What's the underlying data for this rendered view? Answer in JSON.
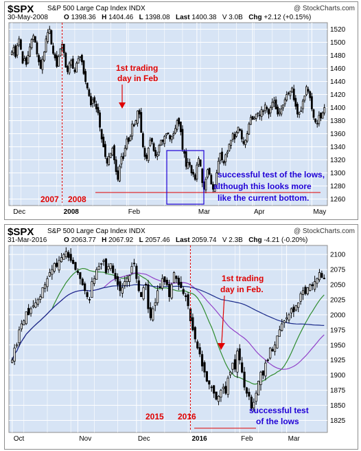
{
  "colors": {
    "plot_bg": "#d7e4f5",
    "grid": "#ffffff",
    "candle": "#000000",
    "annotation_red": "#e00000",
    "annotation_blue": "#1f00d6",
    "ma_blue": "#1a2a8a",
    "ma_green": "#2e8b2e",
    "ma_purple": "#9040c8"
  },
  "chart_data": [
    {
      "type": "candlestick",
      "symbol": "$SPX",
      "name": "S&P 500 Large Cap Index",
      "exchange": "INDX",
      "logo": "@ StockCharts.com",
      "date": "30-May-2008",
      "open_label": "O",
      "open": "1398.36",
      "high_label": "H",
      "high": "1404.46",
      "low_label": "L",
      "low": "1398.08",
      "last_label": "Last",
      "last": "1400.38",
      "volume": "V 3.0B",
      "chg_label": "Chg",
      "chg": "+2.12 (+0.15%)",
      "ylim": [
        1250,
        1530
      ],
      "y_ticks": [
        "1260",
        "1280",
        "1300",
        "1320",
        "1340",
        "1360",
        "1380",
        "1400",
        "1420",
        "1440",
        "1460",
        "1480",
        "1500",
        "1520"
      ],
      "x_labels": [
        "Dec",
        "2008",
        "Feb",
        "Mar",
        "Apr",
        "May"
      ],
      "annotations": [
        "1st trading",
        "day in Feb",
        "2007",
        "2008",
        "successful test of the lows,",
        "although this looks more",
        "like the current bottom."
      ],
      "closes": [
        1485,
        1492,
        1478,
        1495,
        1505,
        1489,
        1468,
        1475,
        1466,
        1480,
        1493,
        1504,
        1510,
        1500,
        1482,
        1470,
        1460,
        1474,
        1485,
        1505,
        1515,
        1520,
        1497,
        1483,
        1476,
        1463,
        1478,
        1490,
        1497,
        1484,
        1462,
        1455,
        1468,
        1472,
        1460,
        1455,
        1468,
        1475,
        1478,
        1470,
        1452,
        1440,
        1430,
        1418,
        1404,
        1412,
        1408,
        1398,
        1392,
        1370,
        1352,
        1340,
        1325,
        1315,
        1325,
        1330,
        1338,
        1320,
        1302,
        1290,
        1310,
        1325,
        1322,
        1338,
        1352,
        1348,
        1356,
        1375,
        1372,
        1380,
        1395,
        1390,
        1362,
        1340,
        1325,
        1322,
        1338,
        1350,
        1348,
        1334,
        1326,
        1328,
        1342,
        1350,
        1348,
        1356,
        1360,
        1360,
        1352,
        1356,
        1360,
        1368,
        1380,
        1375,
        1363,
        1336,
        1330,
        1310,
        1316,
        1312,
        1300,
        1298,
        1290,
        1312,
        1322,
        1310,
        1285,
        1275,
        1290,
        1305,
        1298,
        1283,
        1275,
        1282,
        1300,
        1318,
        1330,
        1320,
        1315,
        1328,
        1332,
        1344,
        1350,
        1360,
        1352,
        1362,
        1370,
        1365,
        1352,
        1345,
        1350,
        1360,
        1375,
        1385,
        1382,
        1384,
        1390,
        1392,
        1388,
        1397,
        1395,
        1404,
        1398,
        1390,
        1400,
        1408,
        1410,
        1398,
        1390,
        1393,
        1398,
        1404,
        1412,
        1420,
        1422,
        1425,
        1430,
        1412,
        1402,
        1390,
        1392,
        1395,
        1410,
        1418,
        1432,
        1425,
        1415,
        1398,
        1385,
        1378,
        1376,
        1388,
        1384,
        1392,
        1400
      ]
    },
    {
      "type": "candlestick",
      "symbol": "$SPX",
      "name": "S&P 500 Large Cap Index",
      "exchange": "INDX",
      "logo": "@ StockCharts.com",
      "date": "31-Mar-2016",
      "open_label": "O",
      "open": "2063.77",
      "high_label": "H",
      "high": "2067.92",
      "low_label": "L",
      "low": "2057.46",
      "last_label": "Last",
      "last": "2059.74",
      "volume": "V 2.3B",
      "chg_label": "Chg",
      "chg": "-4.21 (-0.20%)",
      "ylim": [
        1805,
        2115
      ],
      "y_ticks": [
        "1825",
        "1850",
        "1875",
        "1900",
        "1925",
        "1950",
        "1975",
        "2000",
        "2025",
        "2050",
        "2075",
        "2100"
      ],
      "x_labels": [
        "Oct",
        "Nov",
        "Dec",
        "2016",
        "Feb",
        "Mar"
      ],
      "annotations": [
        "1st trading",
        "day in Feb.",
        "2015",
        "2016",
        "successful test",
        "of the lows"
      ],
      "series": [
        {
          "name": "MA green"
        },
        {
          "name": "MA purple"
        },
        {
          "name": "MA blue"
        }
      ],
      "closes": [
        1925,
        1945,
        1950,
        1975,
        1985,
        1990,
        2005,
        2000,
        2010,
        2015,
        2020,
        2025,
        2030,
        2045,
        2050,
        2060,
        2070,
        2075,
        2085,
        2080,
        2090,
        2095,
        2100,
        2105,
        2095,
        2090,
        2085,
        2075,
        2070,
        2060,
        2050,
        2040,
        2030,
        2025,
        2055,
        2060,
        2075,
        2080,
        2085,
        2090,
        2070,
        2080,
        2085,
        2070,
        2060,
        2050,
        2040,
        2045,
        2055,
        2060,
        2065,
        2080,
        2085,
        2060,
        2040,
        2030,
        2045,
        2050,
        2010,
        1995,
        2010,
        2020,
        2040,
        2045,
        2060,
        2055,
        2050,
        2030,
        2050,
        2070,
        2060,
        2050,
        2045,
        2035,
        2030,
        2015,
        1990,
        1975,
        1960,
        1945,
        1935,
        1915,
        1905,
        1890,
        1885,
        1880,
        1870,
        1860,
        1865,
        1875,
        1880,
        1870,
        1895,
        1905,
        1920,
        1910,
        1940,
        1925,
        1905,
        1880,
        1870,
        1865,
        1845,
        1855,
        1870,
        1890,
        1905,
        1900,
        1920,
        1925,
        1945,
        1940,
        1950,
        1965,
        1975,
        1985,
        1990,
        1995,
        2000,
        2010,
        2005,
        2015,
        2020,
        2035,
        2040,
        2035,
        2045,
        2050,
        2048,
        2055,
        2060,
        2070,
        2062,
        2060
      ]
    }
  ]
}
